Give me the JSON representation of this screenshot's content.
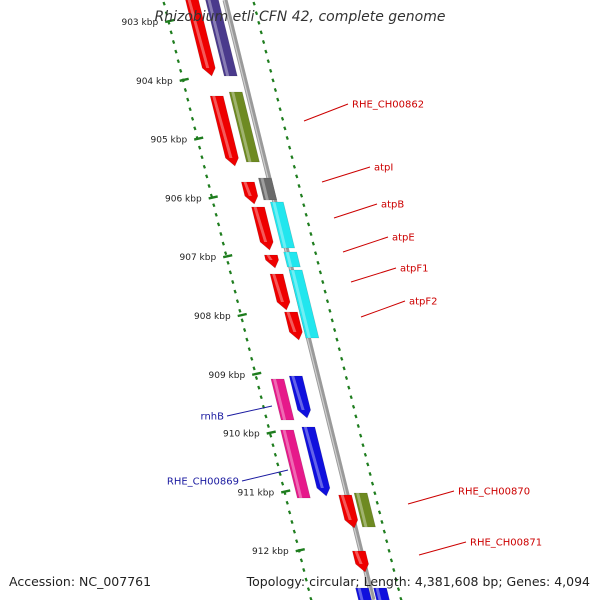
{
  "title": "Rhizobium etli CFN 42, complete genome",
  "footer": {
    "accession": "Accession: NC_007761",
    "summary": "Topology: circular; Length: 4,381,608 bp; Genes: 4,094"
  },
  "colors": {
    "backbone": "#9a9a9a",
    "tick": "#1e7d1e",
    "red": "#ee0000",
    "purple": "#4a3a8c",
    "olive": "#6e8a22",
    "gray": "#6a6a6a",
    "cyan": "#22e6ee",
    "pink": "#e6198a",
    "blue": "#1010dd",
    "label_red": "#cc0000",
    "label_blue": "#1a1aa0"
  },
  "ruler": {
    "labels": [
      "903 kbp",
      "904 kbp",
      "905 kbp",
      "906 kbp",
      "907 kbp",
      "908 kbp",
      "909 kbp",
      "910 kbp",
      "911 kbp",
      "912 kbp"
    ]
  },
  "gene_labels": [
    {
      "text": "RHE_CH00862",
      "color": "red"
    },
    {
      "text": "atpI",
      "color": "red"
    },
    {
      "text": "atpB",
      "color": "red"
    },
    {
      "text": "atpE",
      "color": "red"
    },
    {
      "text": "atpF1",
      "color": "red"
    },
    {
      "text": "atpF2",
      "color": "red"
    },
    {
      "text": "rnhB",
      "color": "blue"
    },
    {
      "text": "RHE_CH00869",
      "color": "blue"
    },
    {
      "text": "RHE_CH00870",
      "color": "red"
    },
    {
      "text": "RHE_CH00871",
      "color": "red"
    }
  ]
}
